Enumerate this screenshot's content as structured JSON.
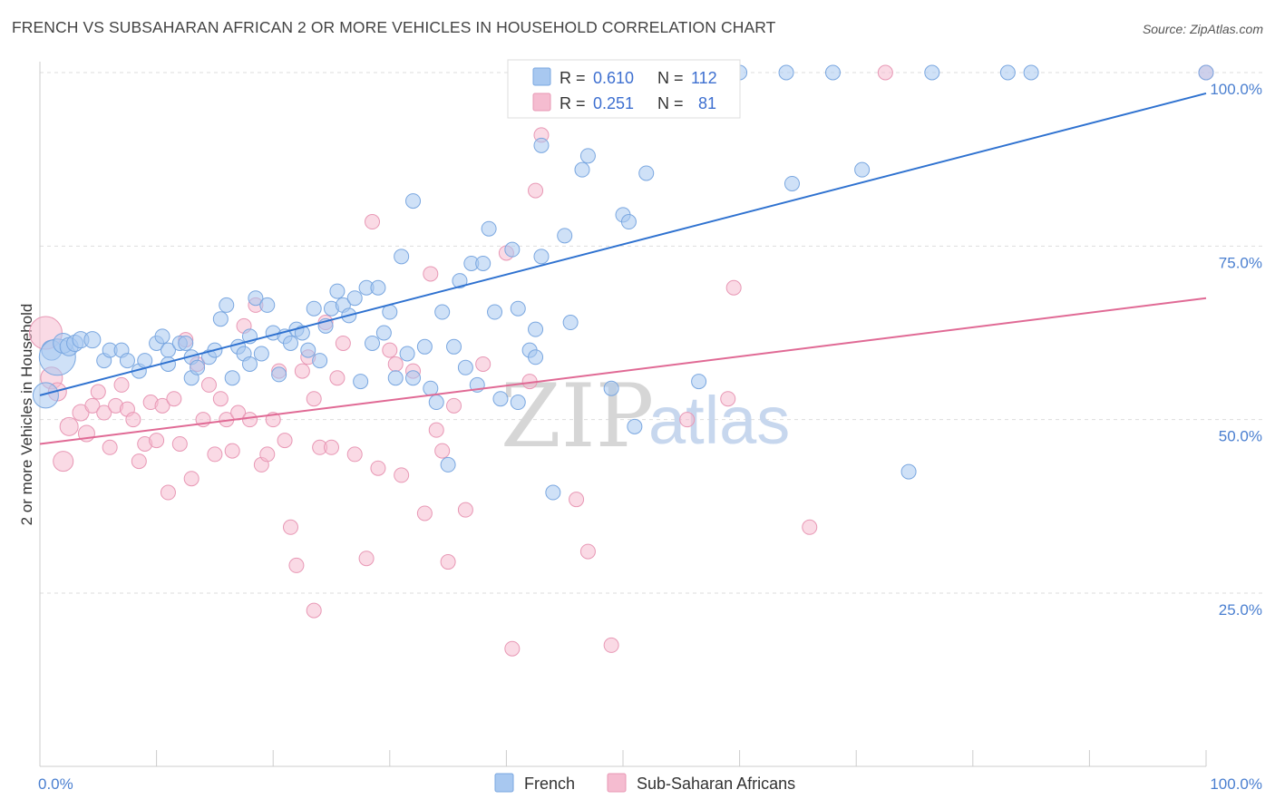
{
  "title": "FRENCH VS SUBSAHARAN AFRICAN 2 OR MORE VEHICLES IN HOUSEHOLD CORRELATION CHART",
  "source": "Source: ZipAtlas.com",
  "watermark": {
    "zip": "ZIP",
    "atlas": "atlas"
  },
  "colors": {
    "french_fill": "#a8c8f0",
    "french_stroke": "#7aa7e0",
    "french_line": "#2f72d0",
    "african_fill": "#f5bcd0",
    "african_stroke": "#e898b5",
    "african_line": "#e06a95",
    "tick_label": "#4a7fd0",
    "grid": "#dddddd"
  },
  "chart_data": {
    "type": "scatter",
    "title": "FRENCH VS SUBSAHARAN AFRICAN 2 OR MORE VEHICLES IN HOUSEHOLD CORRELATION CHART",
    "xlabel": "",
    "ylabel": "2 or more Vehicles in Household",
    "xlim": [
      0,
      100
    ],
    "ylim": [
      0,
      102
    ],
    "x_tick_labels": [
      "0.0%",
      "100.0%"
    ],
    "y_ticks": [
      25,
      50,
      75,
      100
    ],
    "y_tick_labels": [
      "25.0%",
      "50.0%",
      "75.0%",
      "100.0%"
    ],
    "grid": "horizontal dashed",
    "legend_position": "top-center",
    "legend_stats": [
      {
        "r_label": "R =",
        "r_value": "0.610",
        "n_label": "N =",
        "n_value": "112"
      },
      {
        "r_label": "R =",
        "r_value": "0.251",
        "n_label": "N =",
        "n_value": "81"
      }
    ],
    "series": [
      {
        "name": "French",
        "trend": {
          "x": [
            0,
            100
          ],
          "y": [
            53.5,
            97.0
          ]
        },
        "points": [
          [
            0.5,
            53.5,
            14
          ],
          [
            1,
            60,
            11
          ],
          [
            1.5,
            59,
            20
          ],
          [
            2,
            61,
            11
          ],
          [
            2.5,
            60.5,
            10
          ],
          [
            3,
            61,
            9
          ],
          [
            3.5,
            61.5,
            9
          ],
          [
            4.5,
            61.5,
            9
          ],
          [
            5.5,
            58.5,
            8
          ],
          [
            6,
            60,
            8
          ],
          [
            7,
            60,
            8
          ],
          [
            7.5,
            58.5,
            8
          ],
          [
            8.5,
            57,
            8
          ],
          [
            9,
            58.5,
            8
          ],
          [
            10,
            61,
            8
          ],
          [
            10.5,
            62,
            8
          ],
          [
            11,
            60,
            8
          ],
          [
            11,
            58,
            8
          ],
          [
            12,
            61,
            8
          ],
          [
            12.5,
            61,
            8
          ],
          [
            13,
            56,
            8
          ],
          [
            13,
            59,
            8
          ],
          [
            13.5,
            57.5,
            8
          ],
          [
            14.5,
            59,
            8
          ],
          [
            15,
            60,
            8
          ],
          [
            15.5,
            64.5,
            8
          ],
          [
            16,
            66.5,
            8
          ],
          [
            16.5,
            56,
            8
          ],
          [
            17,
            60.5,
            8
          ],
          [
            17.5,
            59.5,
            8
          ],
          [
            18,
            62,
            8
          ],
          [
            18,
            58,
            8
          ],
          [
            18.5,
            67.5,
            8
          ],
          [
            19,
            59.5,
            8
          ],
          [
            19.5,
            66.5,
            8
          ],
          [
            20,
            62.5,
            8
          ],
          [
            20.5,
            56.5,
            8
          ],
          [
            21,
            62,
            8
          ],
          [
            21.5,
            61,
            8
          ],
          [
            22,
            63,
            8
          ],
          [
            22.5,
            62.5,
            8
          ],
          [
            23,
            60,
            8
          ],
          [
            23.5,
            66,
            8
          ],
          [
            24,
            58.5,
            8
          ],
          [
            24.5,
            63.5,
            8
          ],
          [
            25,
            66,
            8
          ],
          [
            25.5,
            68.5,
            8
          ],
          [
            26,
            66.5,
            8
          ],
          [
            26.5,
            65,
            8
          ],
          [
            27,
            67.5,
            8
          ],
          [
            27.5,
            55.5,
            8
          ],
          [
            28,
            69,
            8
          ],
          [
            28.5,
            61,
            8
          ],
          [
            29,
            69,
            8
          ],
          [
            29.5,
            62.5,
            8
          ],
          [
            30,
            65.5,
            8
          ],
          [
            30.5,
            56,
            8
          ],
          [
            31,
            73.5,
            8
          ],
          [
            31.5,
            59.5,
            8
          ],
          [
            32,
            56,
            8
          ],
          [
            32,
            81.5,
            8
          ],
          [
            33,
            60.5,
            8
          ],
          [
            33.5,
            54.5,
            8
          ],
          [
            34,
            52.5,
            8
          ],
          [
            34.5,
            65.5,
            8
          ],
          [
            35,
            43.5,
            8
          ],
          [
            35.5,
            60.5,
            8
          ],
          [
            36,
            70,
            8
          ],
          [
            36.5,
            57.5,
            8
          ],
          [
            37,
            72.5,
            8
          ],
          [
            37.5,
            55,
            8
          ],
          [
            38,
            72.5,
            8
          ],
          [
            38.5,
            77.5,
            8
          ],
          [
            39,
            65.5,
            8
          ],
          [
            39.5,
            53,
            8
          ],
          [
            40.5,
            74.5,
            8
          ],
          [
            41,
            52.5,
            8
          ],
          [
            41,
            66,
            8
          ],
          [
            42,
            60,
            8
          ],
          [
            42.5,
            63,
            8
          ],
          [
            42.5,
            59,
            8
          ],
          [
            43,
            73.5,
            8
          ],
          [
            43,
            89.5,
            8
          ],
          [
            44,
            39.5,
            8
          ],
          [
            45,
            76.5,
            8
          ],
          [
            45.5,
            64,
            8
          ],
          [
            46.5,
            86,
            8
          ],
          [
            47,
            88,
            8
          ],
          [
            47.5,
            100,
            8
          ],
          [
            49,
            54.5,
            8
          ],
          [
            50,
            79.5,
            8
          ],
          [
            50.5,
            78.5,
            8
          ],
          [
            51,
            49,
            8
          ],
          [
            52,
            85.5,
            8
          ],
          [
            53.5,
            100,
            8
          ],
          [
            56,
            100,
            8
          ],
          [
            56.5,
            55.5,
            8
          ],
          [
            60,
            100,
            8
          ],
          [
            64,
            100,
            8
          ],
          [
            64.5,
            84,
            8
          ],
          [
            68,
            100,
            8
          ],
          [
            70.5,
            86,
            8
          ],
          [
            74.5,
            42.5,
            8
          ],
          [
            76.5,
            100,
            8
          ],
          [
            83,
            100,
            8
          ],
          [
            85,
            100,
            8
          ],
          [
            100,
            100,
            8
          ]
        ]
      },
      {
        "name": "Sub-Saharan Africans",
        "trend": {
          "x": [
            0,
            100
          ],
          "y": [
            46.5,
            67.5
          ]
        },
        "points": [
          [
            0.5,
            62.5,
            18
          ],
          [
            1,
            56,
            12
          ],
          [
            1.5,
            54,
            10
          ],
          [
            2,
            44,
            11
          ],
          [
            2.5,
            49,
            10
          ],
          [
            3.5,
            51,
            9
          ],
          [
            4,
            48,
            9
          ],
          [
            4.5,
            52,
            8
          ],
          [
            5,
            54,
            8
          ],
          [
            5.5,
            51,
            8
          ],
          [
            6,
            46,
            8
          ],
          [
            6.5,
            52,
            8
          ],
          [
            7,
            55,
            8
          ],
          [
            7.5,
            51.5,
            8
          ],
          [
            8,
            50,
            8
          ],
          [
            8.5,
            44,
            8
          ],
          [
            9,
            46.5,
            8
          ],
          [
            9.5,
            52.5,
            8
          ],
          [
            10,
            47,
            8
          ],
          [
            10.5,
            52,
            8
          ],
          [
            11,
            39.5,
            8
          ],
          [
            11.5,
            53,
            8
          ],
          [
            12,
            46.5,
            8
          ],
          [
            12.5,
            61.5,
            8
          ],
          [
            13,
            41.5,
            8
          ],
          [
            13.5,
            58,
            8
          ],
          [
            14,
            50,
            8
          ],
          [
            14.5,
            55,
            8
          ],
          [
            15,
            45,
            8
          ],
          [
            15.5,
            53,
            8
          ],
          [
            16,
            50,
            8
          ],
          [
            16.5,
            45.5,
            8
          ],
          [
            17,
            51,
            8
          ],
          [
            17.5,
            63.5,
            8
          ],
          [
            18,
            50,
            8
          ],
          [
            18.5,
            66.5,
            8
          ],
          [
            19,
            43.5,
            8
          ],
          [
            19.5,
            45,
            8
          ],
          [
            20,
            50,
            8
          ],
          [
            20.5,
            57,
            8
          ],
          [
            21,
            47,
            8
          ],
          [
            21.5,
            34.5,
            8
          ],
          [
            22,
            29,
            8
          ],
          [
            22.5,
            57,
            8
          ],
          [
            23,
            59,
            8
          ],
          [
            23.5,
            53,
            8
          ],
          [
            23.5,
            22.5,
            8
          ],
          [
            24,
            46,
            8
          ],
          [
            24.5,
            64,
            8
          ],
          [
            25,
            46,
            8
          ],
          [
            25.5,
            56,
            8
          ],
          [
            26,
            61,
            8
          ],
          [
            27,
            45,
            8
          ],
          [
            28,
            30,
            8
          ],
          [
            28.5,
            78.5,
            8
          ],
          [
            29,
            43,
            8
          ],
          [
            30,
            60,
            8
          ],
          [
            30.5,
            58,
            8
          ],
          [
            31,
            42,
            8
          ],
          [
            32,
            57,
            8
          ],
          [
            33,
            36.5,
            8
          ],
          [
            33.5,
            71,
            8
          ],
          [
            34,
            48.5,
            8
          ],
          [
            34.5,
            45.5,
            8
          ],
          [
            35,
            29.5,
            8
          ],
          [
            35.5,
            52,
            8
          ],
          [
            36.5,
            37,
            8
          ],
          [
            38,
            58,
            8
          ],
          [
            40,
            74,
            8
          ],
          [
            40.5,
            17,
            8
          ],
          [
            42,
            55.5,
            8
          ],
          [
            42.5,
            83,
            8
          ],
          [
            43,
            91,
            8
          ],
          [
            46,
            38.5,
            8
          ],
          [
            47,
            31,
            8
          ],
          [
            49,
            17.5,
            8
          ],
          [
            55.5,
            50,
            8
          ],
          [
            59,
            53,
            8
          ],
          [
            59.5,
            69,
            8
          ],
          [
            66,
            34.5,
            8
          ],
          [
            72.5,
            100,
            8
          ],
          [
            100,
            100,
            8
          ]
        ]
      }
    ]
  }
}
